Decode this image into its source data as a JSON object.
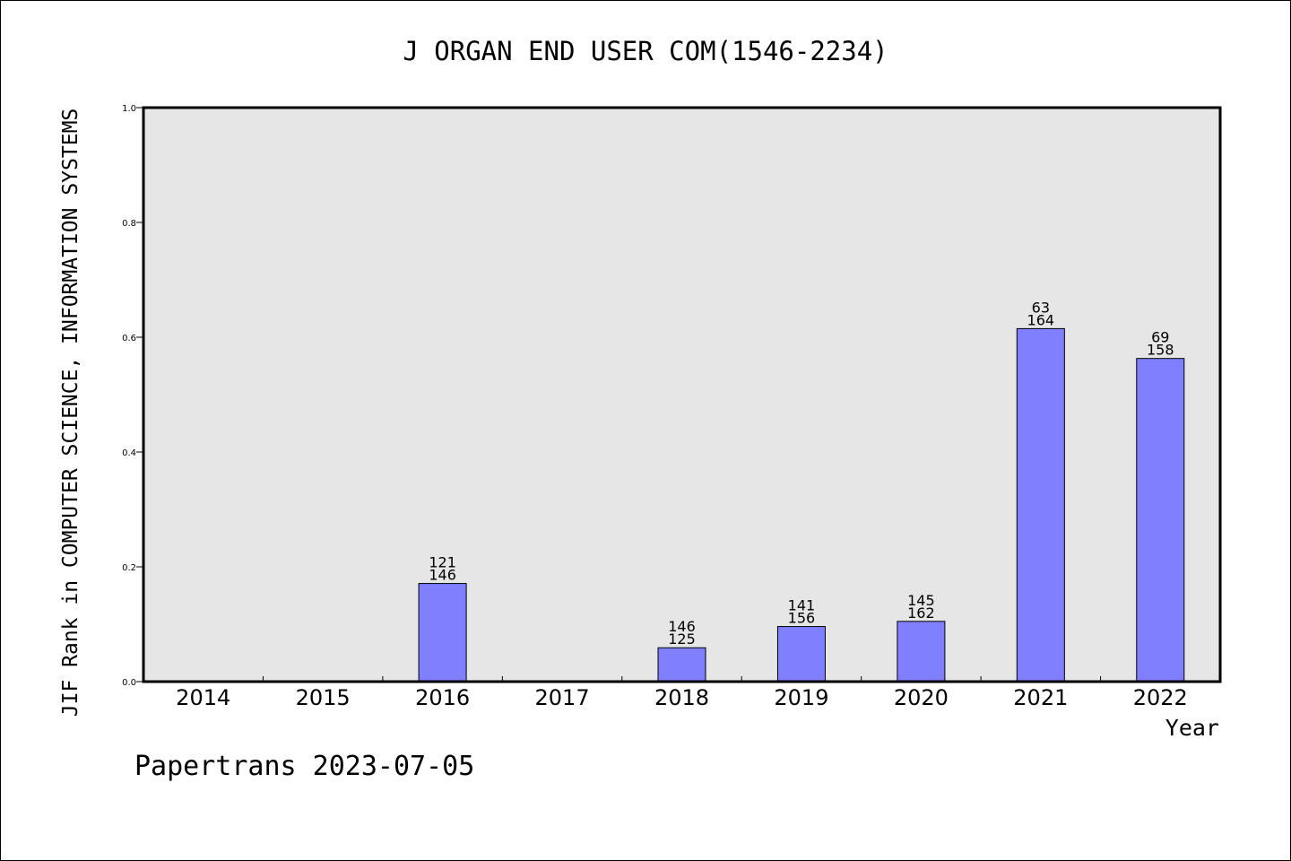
{
  "chart_data": {
    "type": "bar",
    "title": "J ORGAN END USER COM(1546-2234)",
    "xlabel": "Year",
    "ylabel": "JIF Rank in COMPUTER SCIENCE, INFORMATION SYSTEMS",
    "categories": [
      "2014",
      "2015",
      "2016",
      "2017",
      "2018",
      "2019",
      "2020",
      "2021",
      "2022"
    ],
    "values": [
      null,
      null,
      0.171,
      null,
      0.059,
      0.096,
      0.105,
      0.615,
      0.563
    ],
    "label_top": [
      "",
      "",
      "121",
      "",
      "146",
      "141",
      "145",
      "63",
      "69"
    ],
    "label_bottom": [
      "",
      "",
      "146",
      "",
      "125",
      "156",
      "162",
      "164",
      "158"
    ],
    "ylim": [
      0,
      1.0
    ],
    "yticks": [
      "0.0",
      "0.2",
      "0.4",
      "0.6",
      "0.8",
      "1.0"
    ],
    "grid": false,
    "legend": "none",
    "colors": {
      "bar": "#8080ff",
      "plot_bg": "#e6e6e6",
      "axis": "#000000"
    }
  },
  "footer": {
    "watermark": "Papertrans 2023-07-05"
  }
}
